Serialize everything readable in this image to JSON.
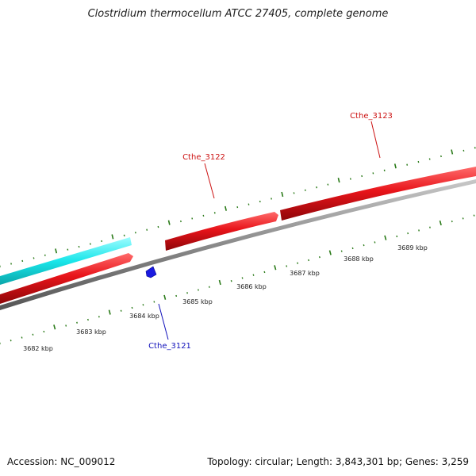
{
  "title": "Clostridium thermocellum ATCC 27405, complete genome",
  "footer": {
    "accession": "Accession: NC_009012",
    "summary": "Topology: circular; Length: 3,843,301 bp; Genes: 3,259"
  },
  "colors": {
    "forward_gene": "#e8141a",
    "reverse_gene": "#1a1ae0",
    "other_feature": "#19e6ea",
    "backbone": "#8a8a8a",
    "ticks": "#2a7a18",
    "forward_label": "#cc1111",
    "reverse_label": "#1111bb"
  },
  "scale": {
    "unit": "kbp",
    "labels": [
      "3682 kbp",
      "3683 kbp",
      "3684 kbp",
      "3685 kbp",
      "3686 kbp",
      "3687 kbp",
      "3688 kbp",
      "3689 kbp"
    ]
  },
  "genes": [
    {
      "name": "Cthe_3121",
      "strand": "reverse"
    },
    {
      "name": "Cthe_3122",
      "strand": "forward"
    },
    {
      "name": "Cthe_3123",
      "strand": "forward"
    }
  ]
}
